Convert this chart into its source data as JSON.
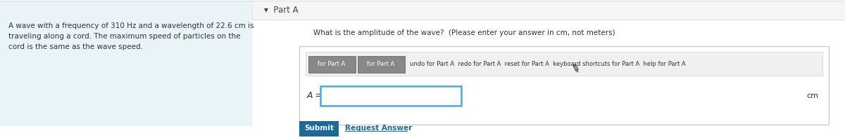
{
  "bg_color": "#ffffff",
  "left_panel_bg": "#e8f4f8",
  "left_panel_text": "A wave with a frequency of 310 Hz and a wavelength of 22.6 cm is\ntraveling along a cord. The maximum speed of particles on the\ncord is the same as the wave speed.",
  "part_a_label": "▾  Part A",
  "question_text": "What is the amplitude of the wave?  (Please enter your answer in cm, not meters)",
  "toolbar_btn1": "for Part A",
  "toolbar_btn2": "for Part A",
  "toolbar_rest": "undo for Part A  redo for Part A  reset for Part A  keyboard shortcuts for Part A  help for Part A",
  "input_label": "A =",
  "unit_label": "cm",
  "submit_btn_text": "Submit",
  "submit_btn_color": "#1a6b9a",
  "request_answer_text": "Request Answer",
  "input_box_border": "#4aa8d8",
  "outer_box_border": "#cccccc",
  "text_color": "#333333",
  "toolbar_btn_bg": "#888888",
  "toolbar_btn_text_color": "#ffffff",
  "separator_color": "#dddddd",
  "header_bg": "#f5f5f5"
}
